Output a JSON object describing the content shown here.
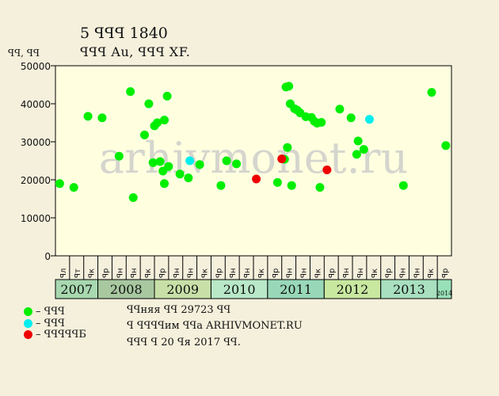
{
  "title": "5 ꟼꟼꟼ 1840",
  "subtitle": "ꟼꟼꟼ Au, ꟼꟼꟼ XF.",
  "y_unit": "ꟼꟼ, ꟼꟼ",
  "watermark": "arhivmonet.ru",
  "legend": [
    {
      "label": "– ꟼꟼꟼ",
      "color": "#00ee00"
    },
    {
      "label": "– ꟼꟼꟼ",
      "color": "#00eeee"
    },
    {
      "label": "– ꟼꟼꟼꟼꟼБ",
      "color": "#ee0000"
    }
  ],
  "notes": [
    "ꟼꟼняя ꟼꟼ 29723 ꟼꟼ",
    "ꟼ ꟼꟼꟼꟼим ꟼꟼа ARHIVMONET.RU",
    "ꟼꟼꟼ ꟼ 20 ꟼя 2017 ꟼꟼ."
  ],
  "chart_data": {
    "type": "scatter",
    "ylim": [
      0,
      50000
    ],
    "yticks": [
      0,
      10000,
      20000,
      30000,
      40000,
      50000
    ],
    "grid": false,
    "month_labels": [
      "ꟼл",
      "ꟼт",
      "ꟼк",
      "ꟼр",
      "ꟼн",
      "ꟼн",
      "ꟼк",
      "ꟼр",
      "ꟼн",
      "ꟼн",
      "ꟼк",
      "ꟼр",
      "ꟼн",
      "ꟼн",
      "ꟼк",
      "ꟼр",
      "ꟼн",
      "ꟼн",
      "ꟼк",
      "ꟼр",
      "ꟼн",
      "ꟼн",
      "ꟼк",
      "ꟼр",
      "ꟼн",
      "ꟼн",
      "ꟼк",
      "ꟼр",
      "ꟼн",
      "ꟼн",
      "ꟼк",
      "ꟼр"
    ],
    "years": [
      {
        "label": "2007",
        "start": 0,
        "span": 3,
        "color": "#a8d8b0"
      },
      {
        "label": "2008",
        "start": 3,
        "span": 4,
        "color": "#a8c8a0"
      },
      {
        "label": "2009",
        "start": 7,
        "span": 4,
        "color": "#c8e0a8"
      },
      {
        "label": "2010",
        "start": 11,
        "span": 4,
        "color": "#b8e8c8"
      },
      {
        "label": "2011",
        "start": 15,
        "span": 4,
        "color": "#98d8b8"
      },
      {
        "label": "2012",
        "start": 19,
        "span": 4,
        "color": "#c8e8a0"
      },
      {
        "label": "2013",
        "start": 23,
        "span": 4,
        "color": "#a8e0c0"
      },
      {
        "label": "2014",
        "start": 27,
        "span": 1,
        "color": "#98e0b8"
      }
    ],
    "series": [
      {
        "color": "#00ee00",
        "points": [
          [
            0.3,
            19000
          ],
          [
            1.3,
            18000
          ],
          [
            2.3,
            36700
          ],
          [
            3.3,
            36300
          ],
          [
            4.5,
            26200
          ],
          [
            5.3,
            43200
          ],
          [
            5.5,
            15300
          ],
          [
            6.3,
            31800
          ],
          [
            6.6,
            40000
          ],
          [
            6.9,
            24500
          ],
          [
            7.0,
            34200
          ],
          [
            7.4,
            24800
          ],
          [
            7.2,
            35000
          ],
          [
            7.7,
            35700
          ],
          [
            7.6,
            22300
          ],
          [
            7.7,
            19000
          ],
          [
            7.9,
            42000
          ],
          [
            8.0,
            23500
          ],
          [
            8.8,
            21500
          ],
          [
            9.4,
            20500
          ],
          [
            10.2,
            24000
          ],
          [
            11.7,
            18500
          ],
          [
            12.1,
            25000
          ],
          [
            12.8,
            24200
          ],
          [
            15.7,
            19300
          ],
          [
            16.2,
            25400
          ],
          [
            16.3,
            44400
          ],
          [
            16.4,
            28500
          ],
          [
            16.5,
            44600
          ],
          [
            16.6,
            40000
          ],
          [
            16.7,
            18500
          ],
          [
            16.9,
            38700
          ],
          [
            17.1,
            38300
          ],
          [
            17.3,
            37600
          ],
          [
            17.7,
            36600
          ],
          [
            18.1,
            36400
          ],
          [
            18.3,
            35400
          ],
          [
            18.5,
            34900
          ],
          [
            18.7,
            18000
          ],
          [
            18.8,
            35100
          ],
          [
            20.1,
            38600
          ],
          [
            20.9,
            36300
          ],
          [
            21.3,
            26700
          ],
          [
            21.4,
            30200
          ],
          [
            21.8,
            28000
          ],
          [
            24.6,
            18500
          ],
          [
            26.6,
            43000
          ],
          [
            27.6,
            29000
          ]
        ]
      },
      {
        "color": "#00eeee",
        "points": [
          [
            9.5,
            25000
          ],
          [
            22.2,
            35900
          ]
        ]
      },
      {
        "color": "#ee0000",
        "points": [
          [
            14.2,
            20200
          ],
          [
            16.0,
            25500
          ],
          [
            19.2,
            22600
          ]
        ]
      }
    ]
  }
}
